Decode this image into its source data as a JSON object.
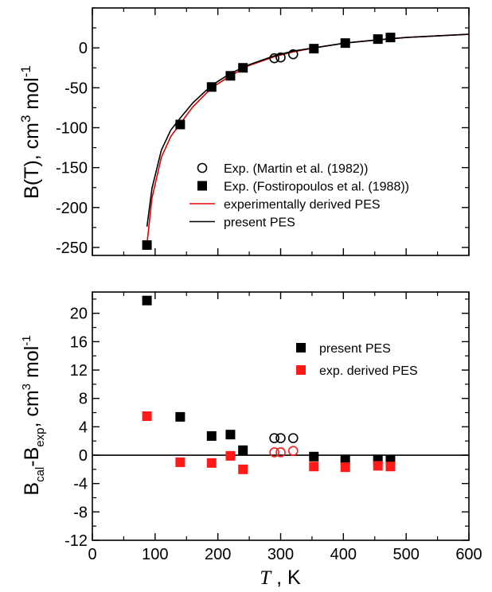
{
  "chart_data": [
    {
      "id": "top",
      "type": "scatter",
      "xlim": [
        0,
        600
      ],
      "ylim": [
        -260,
        50
      ],
      "x_ticks": [
        0,
        100,
        200,
        300,
        400,
        500,
        600
      ],
      "x_tick_labels_shown": false,
      "y_ticks": [
        -250,
        -200,
        -150,
        -100,
        -50,
        0
      ],
      "y_tick_labels": [
        "-250",
        "-200",
        "-150",
        "-100",
        "-50",
        "0"
      ],
      "ylabel": {
        "main": "B(T), cm",
        "sup": "3",
        "mid": " mol",
        "sup2": "-1"
      },
      "legend_position": "lower-right",
      "series": [
        {
          "name": "Exp. (Martin et al. (1982))",
          "marker": "open-circle",
          "color": "#000000",
          "x": [
            290,
            300,
            320
          ],
          "y": [
            -13,
            -12,
            -8
          ]
        },
        {
          "name": "Exp.  (Fostiropoulos et al. (1988))",
          "marker": "filled-square",
          "color": "#000000",
          "x": [
            87,
            140,
            190,
            220,
            240,
            353,
            403,
            455,
            475
          ],
          "y": [
            -247,
            -96,
            -49,
            -35,
            -25,
            -1,
            6,
            11,
            13
          ]
        },
        {
          "name": "experimentally derived PES",
          "marker": "line",
          "color": "#e00000",
          "x": [
            87,
            95,
            110,
            125,
            140,
            160,
            190,
            220,
            250,
            290,
            320,
            353,
            403,
            455,
            500,
            550,
            600
          ],
          "y": [
            -246,
            -188,
            -137,
            -111,
            -95,
            -74,
            -50,
            -35,
            -22,
            -11,
            -5,
            0,
            6,
            10,
            13,
            15,
            17
          ]
        },
        {
          "name": "present PES",
          "marker": "line",
          "color": "#000000",
          "x": [
            87,
            95,
            110,
            125,
            140,
            160,
            190,
            220,
            250,
            290,
            320,
            353,
            403,
            455,
            500,
            550,
            600
          ],
          "y": [
            -224,
            -176,
            -128,
            -103,
            -88,
            -69,
            -47,
            -32,
            -21,
            -10,
            -4,
            0,
            6,
            10,
            13,
            15,
            17
          ]
        }
      ]
    },
    {
      "id": "bottom",
      "type": "scatter",
      "xlim": [
        0,
        600
      ],
      "ylim": [
        -12,
        23
      ],
      "x_ticks": [
        0,
        100,
        200,
        300,
        400,
        500,
        600
      ],
      "x_tick_labels": [
        "0",
        "100",
        "200",
        "300",
        "400",
        "500",
        "600"
      ],
      "y_ticks": [
        -12,
        -8,
        -4,
        0,
        4,
        8,
        12,
        16,
        20
      ],
      "y_tick_labels": [
        "-12",
        "-8",
        "-4",
        "0",
        "4",
        "8",
        "12",
        "16",
        "20"
      ],
      "zero_line": true,
      "xlabel": {
        "italic": "T",
        "rest": " , K"
      },
      "ylabel": {
        "b1": "B",
        "sub1": "cal",
        "mid": "-B",
        "sub2": "exp",
        "tail": ", cm",
        "sup": "3",
        "tail2": " mol",
        "sup2": "-1"
      },
      "legend_position": "upper-right",
      "series": [
        {
          "name": "present PES",
          "marker": "filled-square",
          "color": "#000000",
          "x": [
            87,
            140,
            190,
            220,
            240,
            353,
            403,
            455,
            475
          ],
          "y": [
            21.8,
            5.4,
            2.7,
            2.9,
            0.7,
            -0.2,
            -0.6,
            -0.6,
            -0.7
          ]
        },
        {
          "name": "exp. derived PES",
          "marker": "filled-square",
          "color": "#ff1a1a",
          "x": [
            87,
            140,
            190,
            220,
            240,
            353,
            403,
            455,
            475
          ],
          "y": [
            5.5,
            -1.0,
            -1.1,
            -0.1,
            -2.0,
            -1.6,
            -1.7,
            -1.5,
            -1.6
          ]
        },
        {
          "name": "",
          "marker": "open-circle",
          "color": "#000000",
          "x": [
            290,
            300,
            320
          ],
          "y": [
            2.4,
            2.4,
            2.4
          ]
        },
        {
          "name": "",
          "marker": "open-circle",
          "color": "#ff1a1a",
          "x": [
            290,
            300,
            320
          ],
          "y": [
            0.4,
            0.4,
            0.6
          ]
        }
      ]
    }
  ]
}
